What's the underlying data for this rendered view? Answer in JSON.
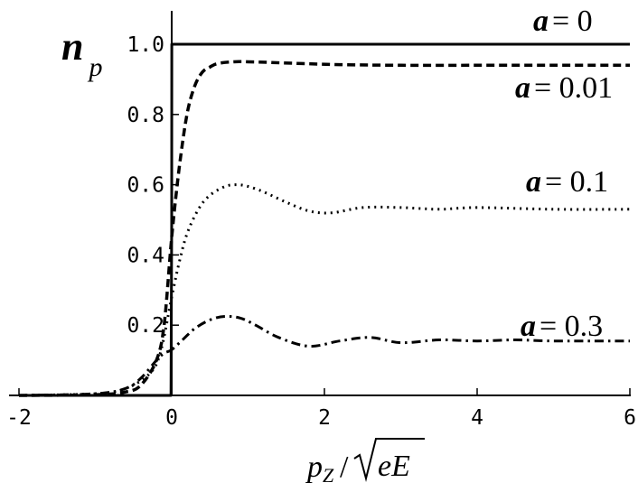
{
  "chart_data": {
    "type": "line",
    "title": "",
    "xlabel": {
      "p": "p",
      "sub": "Z",
      "slash": "/",
      "root": "eE"
    },
    "ylabel": {
      "main": "n",
      "sub": "p"
    },
    "xlim": [
      -2,
      6
    ],
    "ylim": [
      0,
      1.1
    ],
    "x_ticks": [
      "-2",
      "0",
      "2",
      "4",
      "6"
    ],
    "y_ticks": [
      "0.2",
      "0.4",
      "0.6",
      "0.8",
      "1.0"
    ],
    "grid": false,
    "series": [
      {
        "name": "a = 0",
        "var": "a",
        "eq": "= 0",
        "style": "solid",
        "x": [
          -2,
          -0.01,
          0,
          0.001,
          6
        ],
        "y": [
          0,
          0,
          0.5,
          1.0,
          1.0
        ]
      },
      {
        "name": "a = 0.01",
        "var": "a",
        "eq": "= 0.01",
        "style": "dashed",
        "x": [
          -2,
          -1.0,
          -0.6,
          -0.4,
          -0.2,
          -0.1,
          0,
          0.1,
          0.2,
          0.3,
          0.4,
          0.5,
          0.6,
          0.8,
          1.0,
          1.3,
          1.7,
          2.2,
          3.0,
          4.0,
          5.0,
          6.0
        ],
        "y": [
          0,
          0.002,
          0.01,
          0.03,
          0.1,
          0.2,
          0.45,
          0.65,
          0.8,
          0.88,
          0.92,
          0.935,
          0.945,
          0.95,
          0.95,
          0.948,
          0.945,
          0.942,
          0.94,
          0.94,
          0.94,
          0.94
        ]
      },
      {
        "name": "a = 0.1",
        "var": "a",
        "eq": "= 0.1",
        "style": "dotted",
        "x": [
          -2,
          -1.0,
          -0.6,
          -0.3,
          -0.15,
          0,
          0.1,
          0.2,
          0.35,
          0.5,
          0.7,
          0.85,
          1.0,
          1.2,
          1.5,
          1.8,
          2.1,
          2.5,
          3.0,
          3.5,
          4.0,
          5.0,
          6.0
        ],
        "y": [
          0,
          0.005,
          0.02,
          0.06,
          0.12,
          0.28,
          0.38,
          0.46,
          0.53,
          0.57,
          0.595,
          0.6,
          0.595,
          0.58,
          0.55,
          0.525,
          0.52,
          0.535,
          0.535,
          0.53,
          0.535,
          0.53,
          0.53
        ]
      },
      {
        "name": "a = 0.3",
        "var": "a",
        "eq": "= 0.3",
        "style": "dashdot",
        "x": [
          -2,
          -1.0,
          -0.6,
          -0.4,
          -0.2,
          -0.1,
          0,
          0.15,
          0.3,
          0.5,
          0.7,
          0.9,
          1.1,
          1.4,
          1.8,
          2.2,
          2.6,
          3.0,
          3.5,
          4.0,
          4.5,
          5.0,
          6.0
        ],
        "y": [
          0,
          0.005,
          0.02,
          0.05,
          0.1,
          0.12,
          0.13,
          0.16,
          0.19,
          0.215,
          0.225,
          0.22,
          0.2,
          0.165,
          0.14,
          0.155,
          0.165,
          0.15,
          0.158,
          0.155,
          0.158,
          0.155,
          0.155
        ]
      }
    ]
  }
}
